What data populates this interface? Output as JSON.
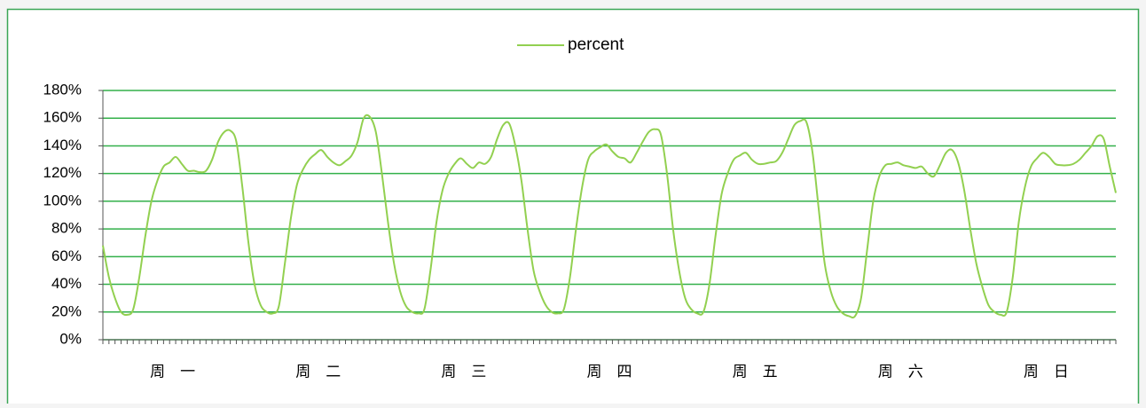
{
  "chart_data": {
    "type": "line",
    "categories": [
      null,
      null,
      null,
      null,
      null,
      null,
      null,
      null,
      null,
      null,
      null,
      null,
      "周　一",
      null,
      null,
      null,
      null,
      null,
      null,
      null,
      null,
      null,
      null,
      null,
      null,
      null,
      null,
      null,
      null,
      null,
      null,
      null,
      null,
      null,
      null,
      null,
      "周　二",
      null,
      null,
      null,
      null,
      null,
      null,
      null,
      null,
      null,
      null,
      null,
      null,
      null,
      null,
      null,
      null,
      null,
      null,
      null,
      null,
      null,
      null,
      null,
      "周　三",
      null,
      null,
      null,
      null,
      null,
      null,
      null,
      null,
      null,
      null,
      null,
      null,
      null,
      null,
      null,
      null,
      null,
      null,
      null,
      null,
      null,
      null,
      null,
      "周　四",
      null,
      null,
      null,
      null,
      null,
      null,
      null,
      null,
      null,
      null,
      null,
      null,
      null,
      null,
      null,
      null,
      null,
      null,
      null,
      null,
      null,
      null,
      null,
      "周　五",
      null,
      null,
      null,
      null,
      null,
      null,
      null,
      null,
      null,
      null,
      null,
      null,
      null,
      null,
      null,
      null,
      null,
      null,
      null,
      null,
      null,
      null,
      null,
      "周　六",
      null,
      null,
      null,
      null,
      null,
      null,
      null,
      null,
      null,
      null,
      null,
      null,
      null,
      null,
      null,
      null,
      null,
      null,
      null,
      null,
      null,
      null,
      null,
      "周　日",
      null,
      null,
      null,
      null,
      null,
      null,
      null,
      null,
      null,
      null,
      null
    ],
    "series": [
      {
        "name": "percent",
        "color": "#92d050",
        "values": [
          68,
          45,
          30,
          20,
          18,
          22,
          45,
          75,
          100,
          115,
          125,
          128,
          132,
          127,
          122,
          122,
          121,
          122,
          130,
          143,
          150,
          151,
          143,
          110,
          70,
          40,
          25,
          20,
          19,
          24,
          55,
          88,
          112,
          123,
          130,
          134,
          137,
          132,
          128,
          126,
          129,
          133,
          143,
          160,
          161,
          150,
          120,
          85,
          55,
          35,
          24,
          20,
          19,
          22,
          50,
          85,
          108,
          120,
          127,
          131,
          127,
          124,
          128,
          127,
          132,
          145,
          155,
          156,
          140,
          115,
          80,
          50,
          35,
          25,
          20,
          19,
          22,
          45,
          80,
          110,
          130,
          136,
          139,
          141,
          136,
          132,
          131,
          128,
          135,
          143,
          150,
          152,
          148,
          120,
          80,
          50,
          30,
          22,
          19,
          20,
          40,
          75,
          105,
          120,
          130,
          133,
          135,
          130,
          127,
          127,
          128,
          129,
          135,
          145,
          155,
          158,
          157,
          135,
          95,
          55,
          35,
          24,
          19,
          17,
          17,
          30,
          65,
          100,
          118,
          126,
          127,
          128,
          126,
          125,
          124,
          125,
          120,
          118,
          126,
          135,
          137,
          128,
          108,
          80,
          55,
          38,
          25,
          20,
          18,
          20,
          45,
          85,
          110,
          125,
          131,
          135,
          132,
          127,
          126,
          126,
          127,
          130,
          135,
          140,
          147,
          145,
          125,
          106
        ]
      }
    ],
    "ylim": [
      0,
      180
    ],
    "yticks": [
      {
        "value": 0,
        "label": "0%"
      },
      {
        "value": 20,
        "label": "20%"
      },
      {
        "value": 40,
        "label": "40%"
      },
      {
        "value": 60,
        "label": "60%"
      },
      {
        "value": 80,
        "label": "80%"
      },
      {
        "value": 100,
        "label": "100%"
      },
      {
        "value": 120,
        "label": "120%"
      },
      {
        "value": 140,
        "label": "140%"
      },
      {
        "value": 160,
        "label": "160%"
      },
      {
        "value": 180,
        "label": "180%"
      }
    ],
    "grid": true,
    "grid_color": "#33b04a",
    "legend": "top"
  }
}
